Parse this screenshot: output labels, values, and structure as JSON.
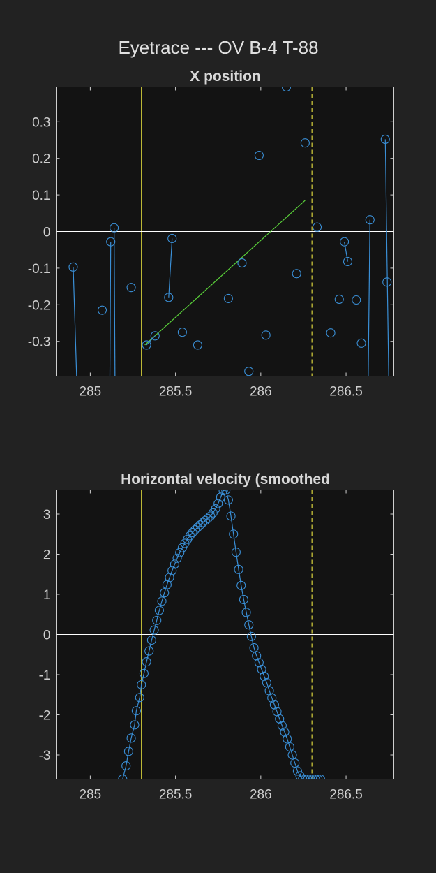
{
  "figure": {
    "title": "Eyetrace --- OV B-4 T-88",
    "background": "#222222",
    "axes_background": "#131313",
    "marker_color": "#3a8fd6",
    "fit_color": "#5ad13a",
    "event_color": "#c9c43a",
    "zero_line_color": "#ffffff"
  },
  "chart_data": [
    {
      "type": "scatter",
      "title": "X position",
      "xlabel": "",
      "ylabel": "",
      "xlim": [
        284.8,
        286.78
      ],
      "ylim": [
        -0.395,
        0.395
      ],
      "xticks": [
        285,
        285.5,
        286,
        286.5
      ],
      "xtick_labels": [
        "285",
        "285.5",
        "286",
        "286.5"
      ],
      "yticks": [
        -0.3,
        -0.2,
        -0.1,
        0,
        0.1,
        0.2,
        0.3
      ],
      "ytick_labels": [
        "-0.3",
        "-0.2",
        "-0.1",
        "0",
        "0.1",
        "0.2",
        "0.3"
      ],
      "grid": false,
      "event_lines": [
        {
          "x": 285.3,
          "style": "solid"
        },
        {
          "x": 286.3,
          "style": "dashed"
        }
      ],
      "fit_line": {
        "x": [
          285.32,
          286.26
        ],
        "y": [
          -0.31,
          0.085
        ]
      },
      "series": [
        {
          "x": [
            284.9,
            284.92
          ],
          "y": [
            -0.097,
            -0.395
          ]
        },
        {
          "x": [
            285.07
          ],
          "y": [
            -0.215
          ]
        },
        {
          "x": [
            285.12,
            285.115
          ],
          "y": [
            -0.028,
            -0.395
          ]
        },
        {
          "x": [
            285.14,
            285.145
          ],
          "y": [
            0.01,
            -0.395
          ]
        },
        {
          "x": [
            285.24
          ],
          "y": [
            -0.153
          ]
        },
        {
          "x": [
            285.33,
            285.38
          ],
          "y": [
            -0.31,
            -0.285
          ]
        },
        {
          "x": [
            285.46,
            285.48
          ],
          "y": [
            -0.18,
            -0.019
          ]
        },
        {
          "x": [
            285.54
          ],
          "y": [
            -0.275
          ]
        },
        {
          "x": [
            285.63
          ],
          "y": [
            -0.31
          ]
        },
        {
          "x": [
            285.81
          ],
          "y": [
            -0.183
          ]
        },
        {
          "x": [
            285.89
          ],
          "y": [
            -0.086
          ]
        },
        {
          "x": [
            285.93
          ],
          "y": [
            -0.382
          ]
        },
        {
          "x": [
            285.99
          ],
          "y": [
            0.208
          ]
        },
        {
          "x": [
            286.03
          ],
          "y": [
            -0.283
          ]
        },
        {
          "x": [
            286.15
          ],
          "y": [
            0.395
          ]
        },
        {
          "x": [
            286.21
          ],
          "y": [
            -0.115
          ]
        },
        {
          "x": [
            286.26
          ],
          "y": [
            0.242
          ]
        },
        {
          "x": [
            286.33
          ],
          "y": [
            0.012
          ]
        },
        {
          "x": [
            286.41
          ],
          "y": [
            -0.277
          ]
        },
        {
          "x": [
            286.46
          ],
          "y": [
            -0.185
          ]
        },
        {
          "x": [
            286.49,
            286.51
          ],
          "y": [
            -0.028,
            -0.082
          ]
        },
        {
          "x": [
            286.56
          ],
          "y": [
            -0.187
          ]
        },
        {
          "x": [
            286.59
          ],
          "y": [
            -0.305
          ]
        },
        {
          "x": [
            286.64,
            286.63
          ],
          "y": [
            0.032,
            -0.395
          ]
        },
        {
          "x": [
            286.73,
            286.75
          ],
          "y": [
            0.252,
            -0.395
          ]
        },
        {
          "x": [
            286.74
          ],
          "y": [
            -0.138
          ]
        }
      ]
    },
    {
      "type": "line",
      "title": "Horizontal velocity (smoothed",
      "xlabel": "",
      "ylabel": "",
      "xlim": [
        284.8,
        286.78
      ],
      "ylim": [
        -3.6,
        3.6
      ],
      "xticks": [
        285,
        285.5,
        286,
        286.5
      ],
      "xtick_labels": [
        "285",
        "285.5",
        "286",
        "286.5"
      ],
      "yticks": [
        -3,
        -2,
        -1,
        0,
        1,
        2,
        3
      ],
      "ytick_labels": [
        "-3",
        "-2",
        "-1",
        "0",
        "1",
        "2",
        "3"
      ],
      "grid": false,
      "event_lines": [
        {
          "x": 285.3,
          "style": "solid"
        },
        {
          "x": 286.3,
          "style": "dashed"
        }
      ],
      "series": [
        {
          "x": [
            285.19,
            285.21,
            285.225,
            285.24,
            285.26,
            285.27,
            285.29,
            285.3,
            285.315,
            285.33,
            285.345,
            285.36,
            285.375,
            285.39,
            285.405,
            285.42,
            285.435,
            285.45,
            285.465,
            285.48,
            285.495,
            285.51,
            285.525,
            285.54,
            285.555,
            285.57,
            285.585,
            285.6,
            285.615,
            285.63,
            285.645,
            285.66,
            285.675,
            285.69,
            285.705,
            285.72,
            285.735,
            285.75,
            285.765,
            285.78,
            285.795,
            285.81,
            285.825,
            285.84,
            285.855,
            285.87,
            285.885,
            285.9,
            285.915,
            285.93,
            285.945,
            285.96,
            285.975,
            285.99,
            286.005,
            286.02,
            286.035,
            286.05,
            286.065,
            286.08,
            286.095,
            286.11,
            286.125,
            286.14,
            286.155,
            286.17,
            286.185,
            286.2,
            286.215,
            286.23,
            286.245,
            286.26,
            286.275,
            286.29,
            286.305,
            286.32,
            286.335,
            286.35
          ],
          "y": [
            -3.6,
            -3.27,
            -2.91,
            -2.58,
            -2.25,
            -1.9,
            -1.57,
            -1.25,
            -0.97,
            -0.68,
            -0.41,
            -0.14,
            0.11,
            0.35,
            0.6,
            0.83,
            1.04,
            1.24,
            1.42,
            1.59,
            1.75,
            1.9,
            2.04,
            2.16,
            2.27,
            2.37,
            2.46,
            2.54,
            2.61,
            2.67,
            2.73,
            2.79,
            2.84,
            2.89,
            2.95,
            3.03,
            3.13,
            3.26,
            3.42,
            3.58,
            3.6,
            3.35,
            2.95,
            2.5,
            2.05,
            1.62,
            1.22,
            0.87,
            0.55,
            0.24,
            -0.05,
            -0.33,
            -0.53,
            -0.7,
            -0.87,
            -1.04,
            -1.2,
            -1.4,
            -1.58,
            -1.75,
            -1.92,
            -2.1,
            -2.27,
            -2.43,
            -2.6,
            -2.8,
            -3.0,
            -3.2,
            -3.4,
            -3.52,
            -3.6,
            -3.6,
            -3.6,
            -3.6,
            -3.6,
            -3.6,
            -3.6,
            -3.6
          ]
        }
      ]
    }
  ]
}
